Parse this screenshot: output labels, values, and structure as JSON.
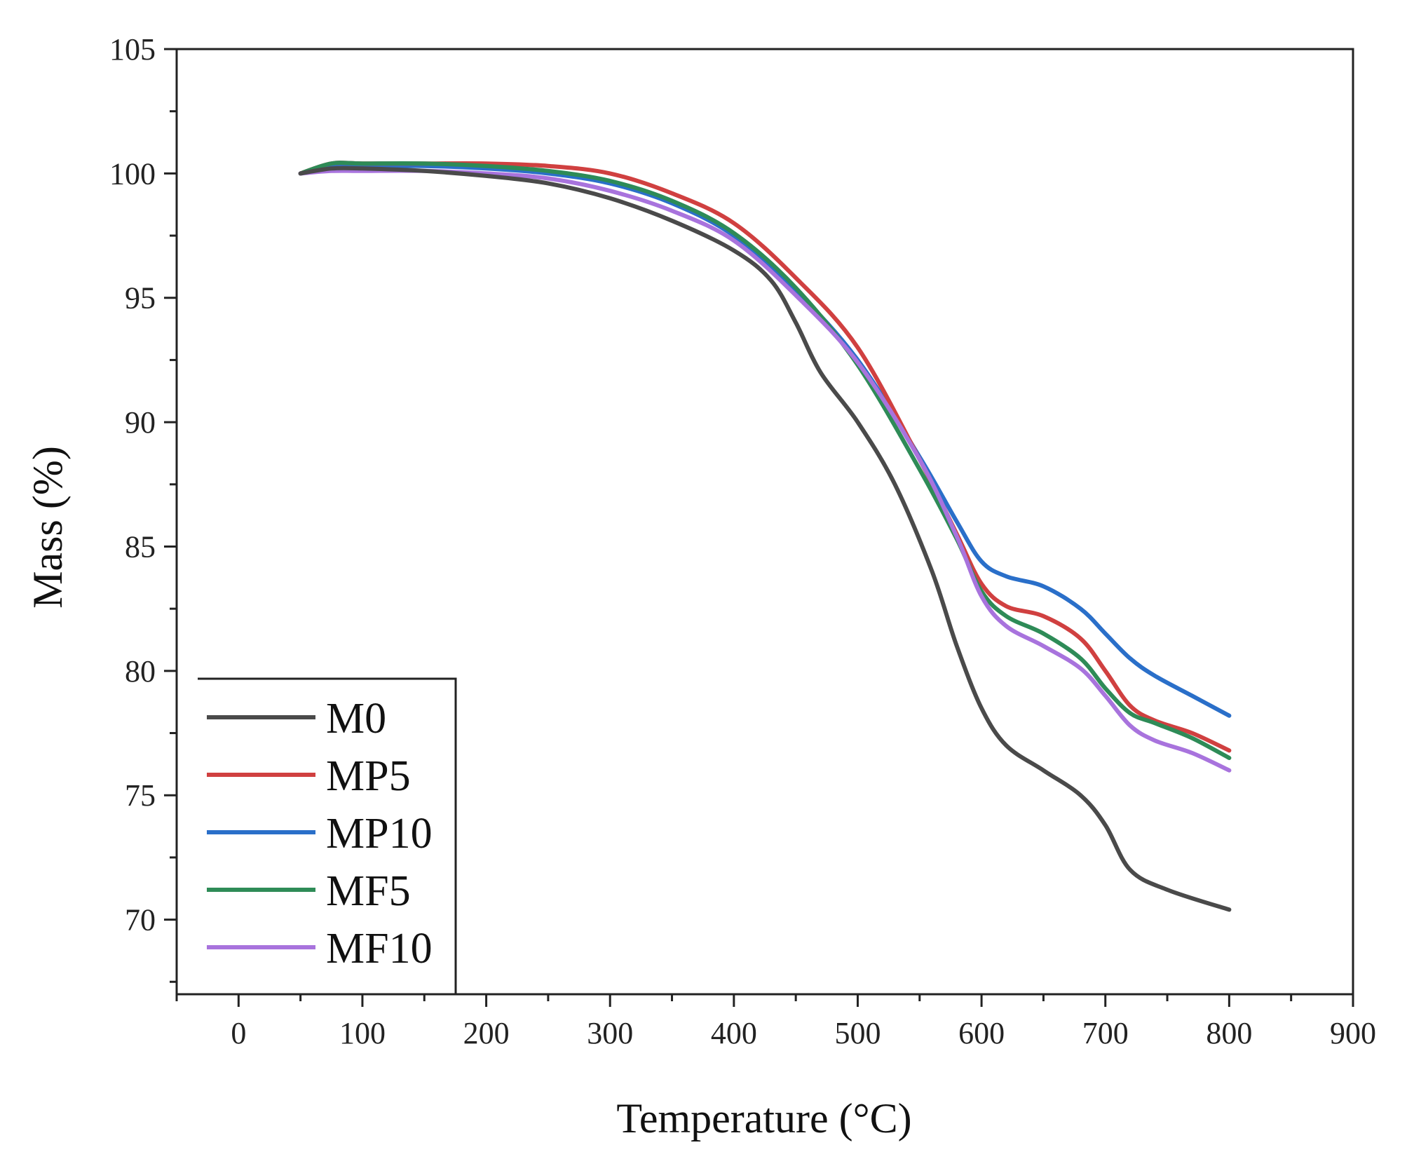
{
  "chart_data": {
    "type": "line",
    "title": "",
    "xlabel": "Temperature (°C)",
    "ylabel": "Mass (%)",
    "xlim": [
      -50,
      900
    ],
    "ylim": [
      67,
      105
    ],
    "xticks": [
      0,
      100,
      200,
      300,
      400,
      500,
      600,
      700,
      800,
      900
    ],
    "xtick_labels": [
      "0",
      "100",
      "200",
      "300",
      "400",
      "500",
      "600",
      "700",
      "800",
      "900"
    ],
    "yticks": [
      70,
      75,
      80,
      85,
      90,
      95,
      100,
      105
    ],
    "ytick_labels": [
      "70",
      "75",
      "80",
      "85",
      "90",
      "95",
      "100",
      "105"
    ],
    "grid": false,
    "legend_position": "bottom-left",
    "series": [
      {
        "name": "M0",
        "color": "#4a4a4a",
        "x": [
          50,
          75,
          100,
          150,
          200,
          250,
          300,
          350,
          400,
          430,
          450,
          470,
          500,
          530,
          560,
          580,
          600,
          620,
          650,
          680,
          700,
          720,
          750,
          800
        ],
        "y": [
          100.0,
          100.2,
          100.2,
          100.1,
          99.9,
          99.6,
          99.0,
          98.1,
          96.9,
          95.7,
          94.0,
          92.0,
          90.0,
          87.5,
          84.0,
          81.0,
          78.5,
          77.0,
          76.0,
          75.0,
          73.8,
          72.0,
          71.2,
          70.4
        ]
      },
      {
        "name": "MP5",
        "color": "#d04040",
        "x": [
          50,
          75,
          100,
          150,
          200,
          250,
          300,
          350,
          400,
          450,
          500,
          550,
          580,
          600,
          620,
          650,
          680,
          700,
          720,
          740,
          770,
          800
        ],
        "y": [
          100.0,
          100.4,
          100.4,
          100.4,
          100.4,
          100.3,
          100.0,
          99.2,
          98.0,
          95.8,
          93.0,
          88.5,
          85.5,
          83.5,
          82.6,
          82.2,
          81.3,
          80.0,
          78.6,
          78.0,
          77.5,
          76.8
        ]
      },
      {
        "name": "MP10",
        "color": "#2a6fc9",
        "x": [
          50,
          75,
          100,
          150,
          200,
          250,
          300,
          350,
          400,
          450,
          500,
          550,
          580,
          600,
          620,
          650,
          680,
          700,
          720,
          740,
          770,
          800
        ],
        "y": [
          100.0,
          100.3,
          100.3,
          100.3,
          100.2,
          100.0,
          99.6,
          98.8,
          97.5,
          95.3,
          92.5,
          88.6,
          86.0,
          84.4,
          83.8,
          83.4,
          82.5,
          81.5,
          80.5,
          79.8,
          79.0,
          78.2
        ]
      },
      {
        "name": "MF5",
        "color": "#2e8b57",
        "x": [
          50,
          75,
          100,
          150,
          200,
          250,
          300,
          350,
          400,
          450,
          500,
          550,
          580,
          600,
          620,
          650,
          680,
          700,
          720,
          740,
          770,
          800
        ],
        "y": [
          100.0,
          100.4,
          100.4,
          100.4,
          100.3,
          100.1,
          99.7,
          98.9,
          97.6,
          95.4,
          92.3,
          88.1,
          85.3,
          83.2,
          82.2,
          81.5,
          80.5,
          79.3,
          78.3,
          77.9,
          77.3,
          76.5
        ]
      },
      {
        "name": "MF10",
        "color": "#a873dd",
        "x": [
          50,
          75,
          100,
          150,
          200,
          250,
          300,
          350,
          400,
          450,
          500,
          550,
          580,
          600,
          620,
          650,
          680,
          700,
          720,
          740,
          770,
          800
        ],
        "y": [
          100.0,
          100.1,
          100.1,
          100.1,
          100.0,
          99.8,
          99.3,
          98.5,
          97.3,
          95.1,
          92.4,
          88.5,
          85.4,
          83.0,
          81.8,
          81.0,
          80.1,
          79.0,
          77.8,
          77.2,
          76.7,
          76.0
        ]
      }
    ]
  }
}
